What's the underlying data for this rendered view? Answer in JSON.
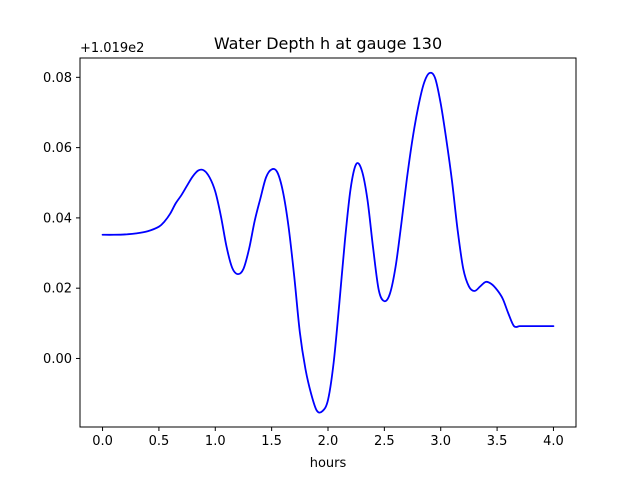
{
  "colors": {
    "line": "#0000ff",
    "frame": "#000000",
    "background": "#ffffff"
  },
  "chart_data": {
    "type": "line",
    "title": "Water Depth h at gauge 130",
    "xlabel": "hours",
    "ylabel": "",
    "y_offset_label": "+1.019e2",
    "xlim": [
      -0.2,
      4.2
    ],
    "ylim": [
      -0.0195,
      0.0855
    ],
    "x_ticks": [
      0.0,
      0.5,
      1.0,
      1.5,
      2.0,
      2.5,
      3.0,
      3.5,
      4.0
    ],
    "x_tick_labels": [
      "0.0",
      "0.5",
      "1.0",
      "1.5",
      "2.0",
      "2.5",
      "3.0",
      "3.5",
      "4.0"
    ],
    "y_ticks": [
      0.0,
      0.02,
      0.04,
      0.06,
      0.08
    ],
    "y_tick_labels": [
      "0.00",
      "0.02",
      "0.04",
      "0.06",
      "0.08"
    ],
    "grid": false,
    "series": [
      {
        "color": "#0000ff",
        "x": [
          0.0,
          0.1,
          0.2,
          0.3,
          0.4,
          0.5,
          0.55,
          0.6,
          0.65,
          0.7,
          0.75,
          0.8,
          0.85,
          0.9,
          0.95,
          1.0,
          1.05,
          1.1,
          1.15,
          1.2,
          1.25,
          1.3,
          1.35,
          1.4,
          1.45,
          1.5,
          1.55,
          1.6,
          1.65,
          1.7,
          1.75,
          1.8,
          1.85,
          1.9,
          1.95,
          2.0,
          2.05,
          2.1,
          2.15,
          2.2,
          2.25,
          2.3,
          2.35,
          2.4,
          2.45,
          2.5,
          2.55,
          2.6,
          2.65,
          2.7,
          2.75,
          2.8,
          2.85,
          2.9,
          2.95,
          3.0,
          3.05,
          3.1,
          3.15,
          3.2,
          3.25,
          3.3,
          3.35,
          3.4,
          3.45,
          3.5,
          3.55,
          3.6,
          3.65,
          3.7,
          3.75,
          3.8,
          3.85,
          3.9,
          3.95,
          4.0
        ],
        "y": [
          0.0352,
          0.0352,
          0.0353,
          0.0356,
          0.0362,
          0.0375,
          0.039,
          0.0412,
          0.0442,
          0.0465,
          0.0492,
          0.0518,
          0.0535,
          0.0535,
          0.0515,
          0.0475,
          0.0405,
          0.0318,
          0.0258,
          0.024,
          0.0255,
          0.0312,
          0.0392,
          0.0455,
          0.0515,
          0.0538,
          0.053,
          0.0475,
          0.0375,
          0.0235,
          0.0075,
          -0.003,
          -0.01,
          -0.0148,
          -0.015,
          -0.0118,
          -0.0012,
          0.0155,
          0.0335,
          0.0482,
          0.0553,
          0.0535,
          0.0452,
          0.0315,
          0.0195,
          0.0163,
          0.0185,
          0.0262,
          0.0382,
          0.0512,
          0.0625,
          0.0715,
          0.0782,
          0.0812,
          0.0798,
          0.0725,
          0.0622,
          0.0505,
          0.0365,
          0.0255,
          0.0205,
          0.0192,
          0.0205,
          0.0218,
          0.0212,
          0.0195,
          0.017,
          0.0128,
          0.0092,
          0.0092,
          0.0092,
          0.0092,
          0.0092,
          0.0092,
          0.0092,
          0.0092
        ]
      }
    ]
  }
}
